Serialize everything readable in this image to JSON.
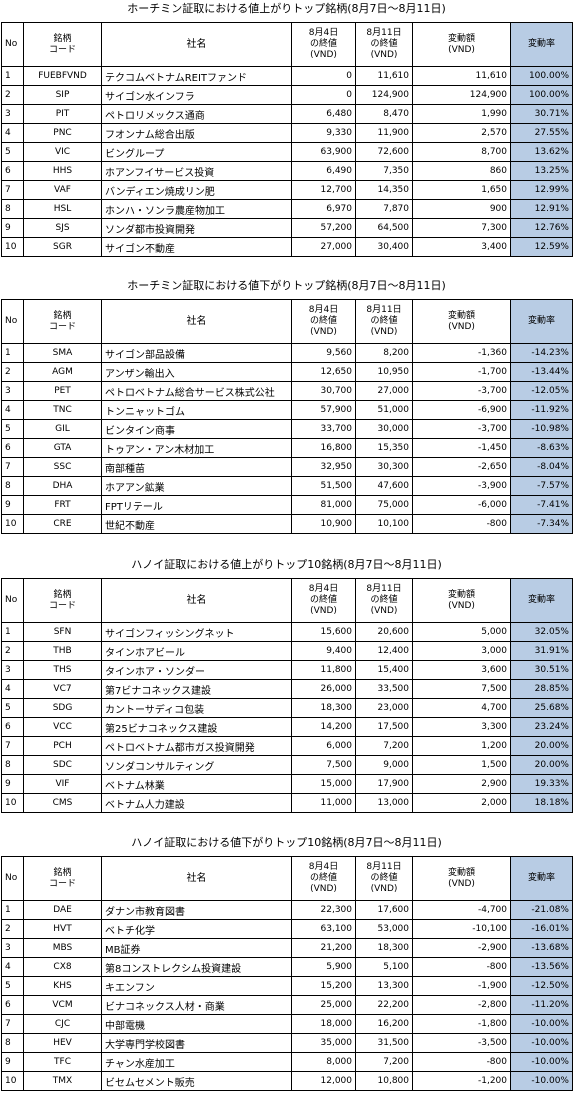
{
  "tables": [
    {
      "title": "ホーチミン証取における値上がりトップ銘柄(8月7日～8月11日)",
      "header": [
        "No",
        "銘柄\nコード",
        "社名",
        "8月4日\nの終値\n(VND)",
        "8月11日\nの終値\n(VND)",
        "変動額\n(VND)",
        "変動率"
      ],
      "rows": [
        [
          "1",
          "FUEBFVND",
          "テクコムベトナムREITファンド",
          "0",
          "11,610",
          "11,610",
          "100.00%"
        ],
        [
          "2",
          "SIP",
          "サイゴン水インフラ",
          "0",
          "124,900",
          "124,900",
          "100.00%"
        ],
        [
          "3",
          "PIT",
          "ペトロリメックス通商",
          "6,480",
          "8,470",
          "1,990",
          "30.71%"
        ],
        [
          "4",
          "PNC",
          "フオンナム総合出版",
          "9,330",
          "11,900",
          "2,570",
          "27.55%"
        ],
        [
          "5",
          "VIC",
          "ビングループ",
          "63,900",
          "72,600",
          "8,700",
          "13.62%"
        ],
        [
          "6",
          "HHS",
          "ホアンフイサービス投資",
          "6,490",
          "7,350",
          "860",
          "13.25%"
        ],
        [
          "7",
          "VAF",
          "バンディエン焼成リン肥",
          "12,700",
          "14,350",
          "1,650",
          "12.99%"
        ],
        [
          "8",
          "HSL",
          "ホンハ・ソンラ農産物加工",
          "6,970",
          "7,870",
          "900",
          "12.91%"
        ],
        [
          "9",
          "SJS",
          "ソンダ都市投資開発",
          "57,200",
          "64,500",
          "7,300",
          "12.76%"
        ],
        [
          "10",
          "SGR",
          "サイゴン不動産",
          "27,000",
          "30,400",
          "3,400",
          "12.59%"
        ]
      ]
    },
    {
      "title": "ホーチミン証取における値下がりトップ銘柄(8月7日～8月11日)",
      "header": [
        "No",
        "銘柄\nコード",
        "社名",
        "8月4日\nの終値\n(VND)",
        "8月11日\nの終値\n(VND)",
        "変動額\n(VND)",
        "変動率"
      ],
      "rows": [
        [
          "1",
          "SMA",
          "サイゴン部品設備",
          "9,560",
          "8,200",
          "-1,360",
          "-14.23%"
        ],
        [
          "2",
          "AGM",
          "アンザン輸出入",
          "12,650",
          "10,950",
          "-1,700",
          "-13.44%"
        ],
        [
          "3",
          "PET",
          "ペトロベトナム総合サービス株式公社",
          "30,700",
          "27,000",
          "-3,700",
          "-12.05%"
        ],
        [
          "4",
          "TNC",
          "トンニャットゴム",
          "57,900",
          "51,000",
          "-6,900",
          "-11.92%"
        ],
        [
          "5",
          "GIL",
          "ビンタイン商事",
          "33,700",
          "30,000",
          "-3,700",
          "-10.98%"
        ],
        [
          "6",
          "GTA",
          "トゥアン・アン木材加工",
          "16,800",
          "15,350",
          "-1,450",
          "-8.63%"
        ],
        [
          "7",
          "SSC",
          "南部種苗",
          "32,950",
          "30,300",
          "-2,650",
          "-8.04%"
        ],
        [
          "8",
          "DHA",
          "ホアアン鉱業",
          "51,500",
          "47,600",
          "-3,900",
          "-7.57%"
        ],
        [
          "9",
          "FRT",
          "FPTリテール",
          "81,000",
          "75,000",
          "-6,000",
          "-7.41%"
        ],
        [
          "10",
          "CRE",
          "世紀不動産",
          "10,900",
          "10,100",
          "-800",
          "-7.34%"
        ]
      ]
    },
    {
      "title": "ハノイ証取における値上がりトップ10銘柄(8月7日～8月11日)",
      "header": [
        "No",
        "銘柄\nコード",
        "社名",
        "8月4日\nの終値\n(VND)",
        "8月11日\nの終値\n(VND)",
        "変動額\n(VND)",
        "変動率"
      ],
      "rows": [
        [
          "1",
          "SFN",
          "サイゴンフィッシングネット",
          "15,600",
          "20,600",
          "5,000",
          "32.05%"
        ],
        [
          "2",
          "THB",
          "タインホアビール",
          "9,400",
          "12,400",
          "3,000",
          "31.91%"
        ],
        [
          "3",
          "THS",
          "タインホア・ソンダー",
          "11,800",
          "15,400",
          "3,600",
          "30.51%"
        ],
        [
          "4",
          "VC7",
          "第7ビナコネックス建設",
          "26,000",
          "33,500",
          "7,500",
          "28.85%"
        ],
        [
          "5",
          "SDG",
          "カントーサディコ包装",
          "18,300",
          "23,000",
          "4,700",
          "25.68%"
        ],
        [
          "6",
          "VCC",
          "第25ビナコネックス建設",
          "14,200",
          "17,500",
          "3,300",
          "23.24%"
        ],
        [
          "7",
          "PCH",
          "ペトロベトナム都市ガス投資開発",
          "6,000",
          "7,200",
          "1,200",
          "20.00%"
        ],
        [
          "8",
          "SDC",
          "ソンダコンサルティング",
          "7,500",
          "9,000",
          "1,500",
          "20.00%"
        ],
        [
          "9",
          "VIF",
          "ベトナム林業",
          "15,000",
          "17,900",
          "2,900",
          "19.33%"
        ],
        [
          "10",
          "CMS",
          "ベトナム人力建設",
          "11,000",
          "13,000",
          "2,000",
          "18.18%"
        ]
      ]
    },
    {
      "title": "ハノイ証取における値下がりトップ10銘柄(8月7日～8月11日)",
      "header": [
        "No",
        "銘柄\nコード",
        "社名",
        "8月4日\nの終値\n(VND)",
        "8月11日\nの終値\n(VND)",
        "変動額\n(VND)",
        "変動率"
      ],
      "rows": [
        [
          "1",
          "DAE",
          "ダナン市教育図書",
          "22,300",
          "17,600",
          "-4,700",
          "-21.08%"
        ],
        [
          "2",
          "HVT",
          "ベトチ化学",
          "63,100",
          "53,000",
          "-10,100",
          "-16.01%"
        ],
        [
          "3",
          "MBS",
          "MB証券",
          "21,200",
          "18,300",
          "-2,900",
          "-13.68%"
        ],
        [
          "4",
          "CX8",
          "第8コンストレクシム投資建設",
          "5,900",
          "5,100",
          "-800",
          "-13.56%"
        ],
        [
          "5",
          "KHS",
          "キエンフン",
          "15,200",
          "13,300",
          "-1,900",
          "-12.50%"
        ],
        [
          "6",
          "VCM",
          "ビナコネックス人材・商業",
          "25,000",
          "22,200",
          "-2,800",
          "-11.20%"
        ],
        [
          "7",
          "CJC",
          "中部電機",
          "18,000",
          "16,200",
          "-1,800",
          "-10.00%"
        ],
        [
          "8",
          "HEV",
          "大学専門学校図書",
          "35,000",
          "31,500",
          "-3,500",
          "-10.00%"
        ],
        [
          "9",
          "TFC",
          "チャン水産加工",
          "8,000",
          "7,200",
          "-800",
          "-10.00%"
        ],
        [
          "10",
          "TMX",
          "ビセムセメント販売",
          "12,000",
          "10,800",
          "-1,200",
          "-10.00%"
        ]
      ]
    }
  ]
}
